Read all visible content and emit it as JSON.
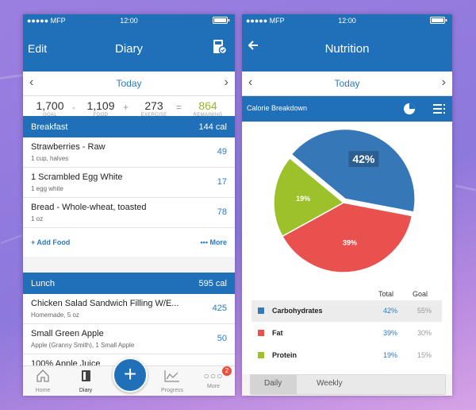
{
  "left": {
    "status": {
      "carrier": "●●●●● MFP",
      "time": "12:00"
    },
    "header": {
      "left": "Edit",
      "title": "Diary"
    },
    "date": "Today",
    "summary": {
      "goal": "1,700",
      "goal_cap": "GOAL",
      "food": "1,109",
      "food_cap": "FOOD",
      "exercise": "273",
      "exercise_cap": "EXERCISE",
      "remaining": "864",
      "remaining_cap": "REMAINING",
      "op_minus": "-",
      "op_plus": "+",
      "op_eq": "="
    },
    "breakfast": {
      "name": "Breakfast",
      "cal": "144 cal",
      "items": [
        {
          "name": "Strawberries - Raw",
          "desc": "1 cup, halves",
          "cal": "49"
        },
        {
          "name": "1 Scrambled Egg White",
          "desc": "1 egg white",
          "cal": "17"
        },
        {
          "name": "Bread - Whole-wheat, toasted",
          "desc": "1 oz",
          "cal": "78"
        }
      ],
      "add_food": "+ Add Food",
      "more": "••• More"
    },
    "lunch": {
      "name": "Lunch",
      "cal": "595 cal",
      "items": [
        {
          "name": "Chicken Salad Sandwich Filling W/E...",
          "desc": "Homemade, 5 oz",
          "cal": "425"
        },
        {
          "name": "Small Green Apple",
          "desc": "Apple (Granny Smith), 1 Small Apple",
          "cal": "50"
        },
        {
          "name": "100% Apple Juice",
          "desc": "",
          "cal": ""
        }
      ]
    },
    "tabs": {
      "home": "Home",
      "diary": "Diary",
      "progress": "Progress",
      "more": "More",
      "badge": "2"
    }
  },
  "right": {
    "status": {
      "carrier": "●●●●● MFP",
      "time": "12:00"
    },
    "header": {
      "title": "Nutrition"
    },
    "date": "Today",
    "chart_title": "Calorie Breakdown",
    "legend_headers": {
      "total": "Total",
      "goal": "Goal"
    },
    "segments": {
      "daily": "Daily",
      "weekly": "Weekly"
    }
  },
  "chart_data": {
    "type": "pie",
    "categories": [
      "Carbohydrates",
      "Fat",
      "Protein"
    ],
    "values": [
      42,
      39,
      19
    ],
    "labels": [
      "42%",
      "39%",
      "19%"
    ],
    "goals": [
      "55%",
      "30%",
      "15%"
    ],
    "colors": [
      "#3577b7",
      "#e8514d",
      "#9cc12b"
    ]
  }
}
